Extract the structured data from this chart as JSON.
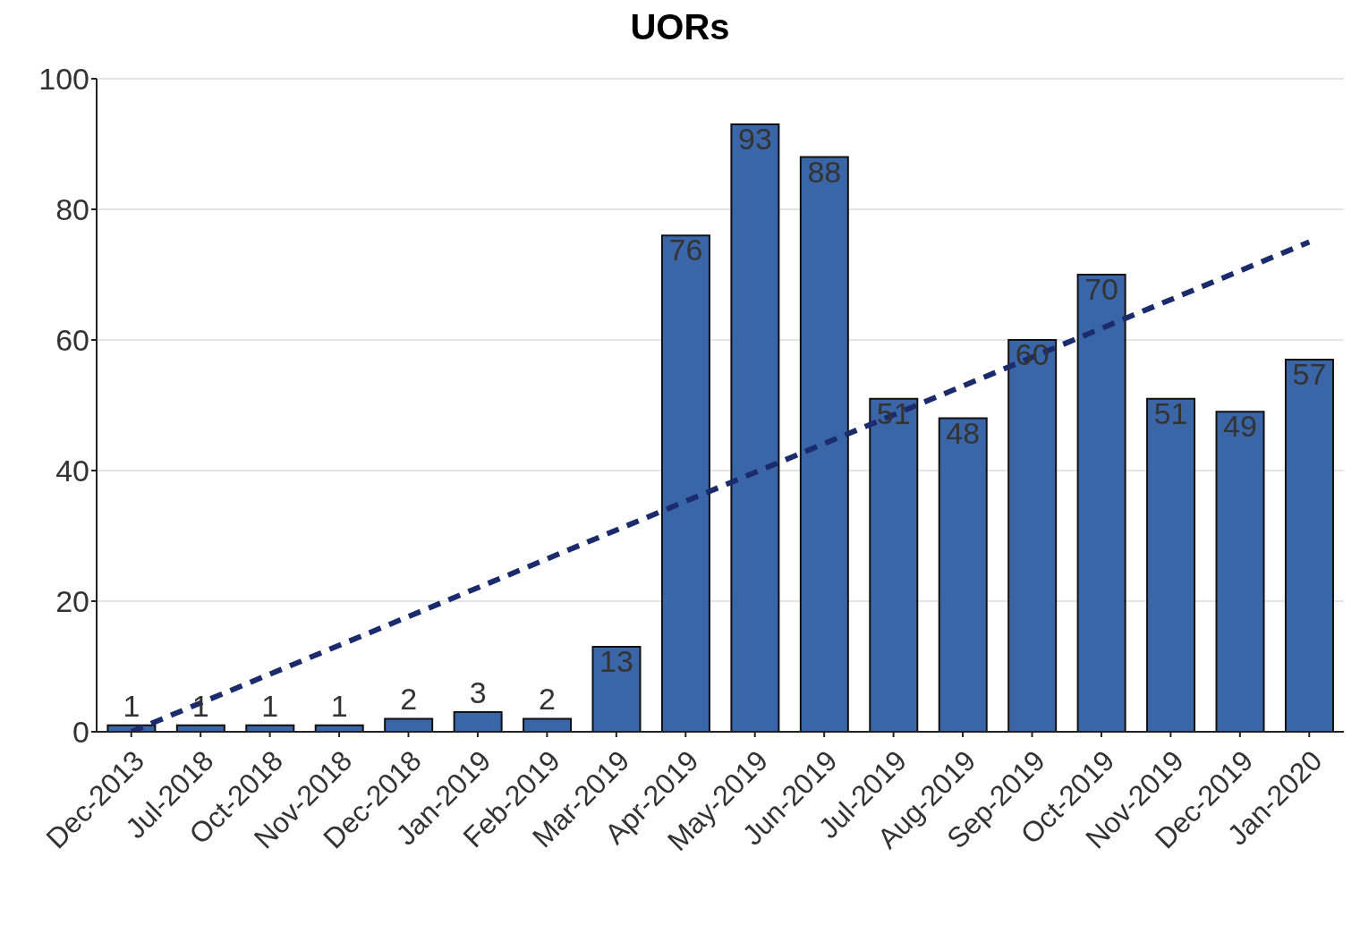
{
  "chart_data": {
    "type": "bar",
    "title": "UORs",
    "categories": [
      "Dec-2013",
      "Jul-2018",
      "Oct-2018",
      "Nov-2018",
      "Dec-2018",
      "Jan-2019",
      "Feb-2019",
      "Mar-2019",
      "Apr-2019",
      "May-2019",
      "Jun-2019",
      "Jul-2019",
      "Aug-2019",
      "Sep-2019",
      "Oct-2019",
      "Nov-2019",
      "Dec-2019",
      "Jan-2020"
    ],
    "series": [
      {
        "color": "#3a66a8",
        "values": [
          1,
          1,
          1,
          1,
          2,
          3,
          2,
          13,
          76,
          93,
          88,
          51,
          48,
          60,
          70,
          51,
          49,
          57
        ],
        "value_labels": [
          "1",
          "1",
          "1",
          "1",
          "2",
          "3",
          "2",
          "13",
          "76",
          "93",
          "88",
          "51",
          "48",
          "60",
          "70",
          "51",
          "49",
          "57"
        ]
      },
      {
        "type": "line",
        "color": "#1c2b6b",
        "line_style": "dashed",
        "marker": "none",
        "values": [
          0,
          null,
          null,
          null,
          null,
          null,
          null,
          null,
          null,
          null,
          null,
          null,
          null,
          null,
          null,
          null,
          null,
          75
        ]
      }
    ],
    "ylim": [
      0,
      100
    ],
    "yticks": [
      0,
      20,
      40,
      60,
      80,
      100
    ],
    "grid": "y",
    "legend": false
  }
}
